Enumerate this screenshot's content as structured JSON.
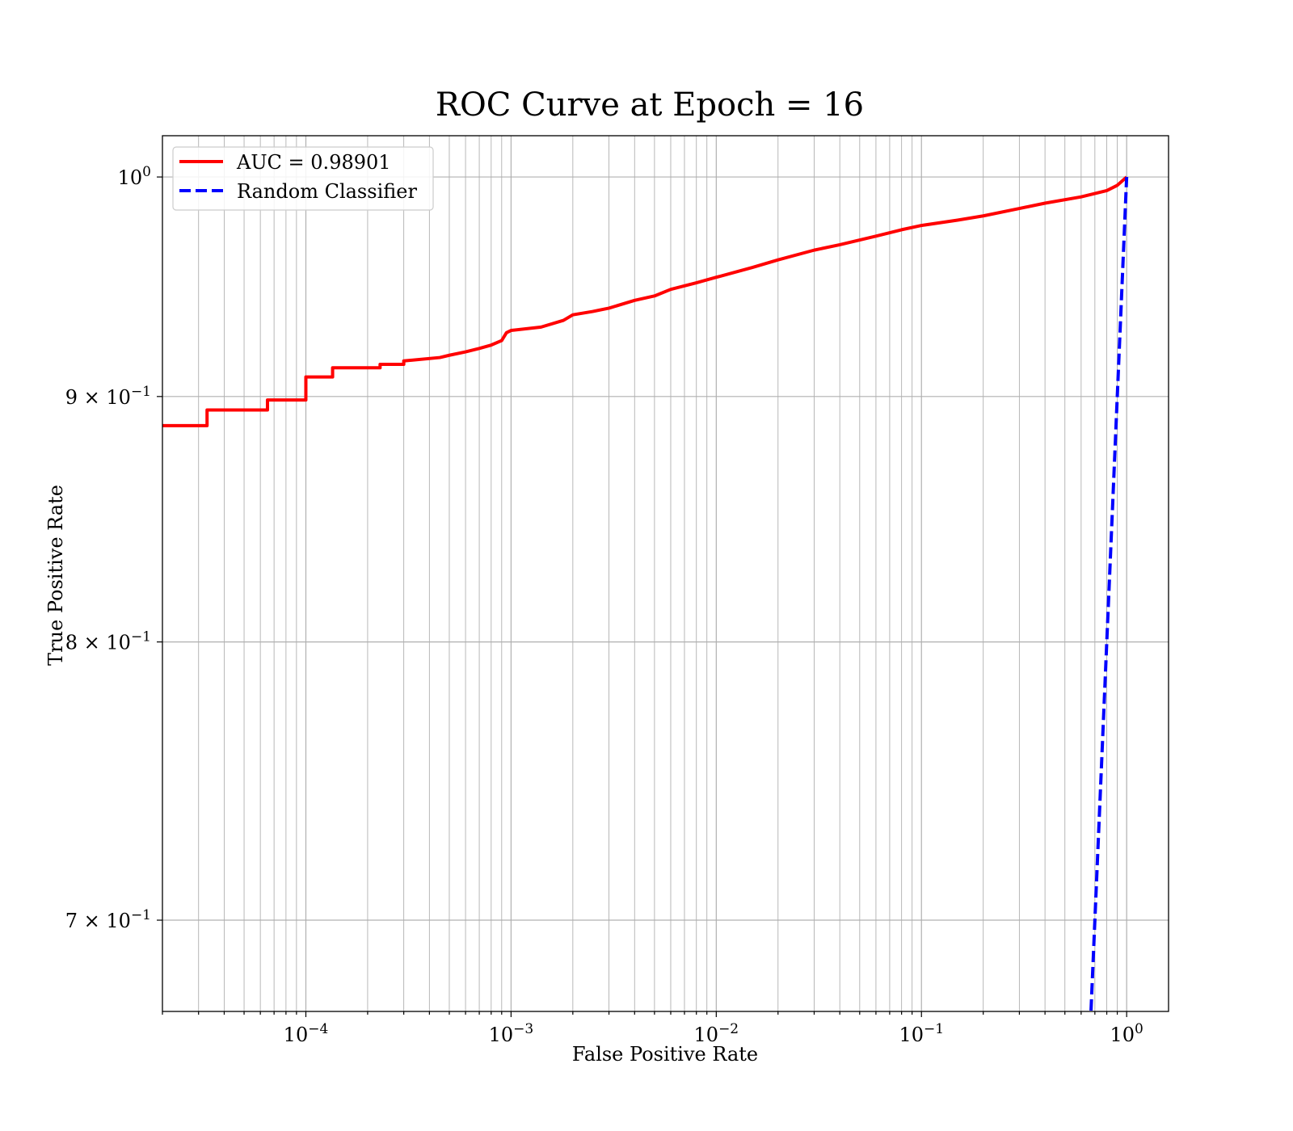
{
  "chart_data": {
    "type": "line",
    "title": "ROC Curve at Epoch = 16",
    "xlabel": "False Positive Rate",
    "ylabel": "True Positive Rate",
    "x_scale": "log",
    "y_scale": "log",
    "xlim": [
      2e-05,
      1.6
    ],
    "ylim": [
      0.67,
      1.02
    ],
    "grid": true,
    "grid_color": "#b0b0b0",
    "legend_position": "top-left",
    "x_ticks": [
      {
        "value": 0.0001,
        "base": "10",
        "exp": "−4"
      },
      {
        "value": 0.001,
        "base": "10",
        "exp": "−3"
      },
      {
        "value": 0.01,
        "base": "10",
        "exp": "−2"
      },
      {
        "value": 0.1,
        "base": "10",
        "exp": "−1"
      },
      {
        "value": 1,
        "base": "10",
        "exp": "0"
      }
    ],
    "y_ticks": [
      {
        "value": 1.0,
        "mant": "",
        "base": "10",
        "exp": "0"
      },
      {
        "value": 0.9,
        "mant": "9 × ",
        "base": "10",
        "exp": "−1"
      },
      {
        "value": 0.8,
        "mant": "8 × ",
        "base": "10",
        "exp": "−1"
      },
      {
        "value": 0.7,
        "mant": "7 × ",
        "base": "10",
        "exp": "−1"
      }
    ],
    "series": [
      {
        "name": "AUC = 0.98901",
        "color": "#ff0000",
        "style": "solid",
        "interpolation": "step",
        "x": [
          2e-05,
          3.3e-05,
          3.3e-05,
          6.5e-05,
          6.5e-05,
          0.0001,
          0.0001,
          0.000135,
          0.000135,
          0.00023,
          0.00023,
          0.0003,
          0.0003,
          0.00045,
          0.0005,
          0.0006,
          0.0007,
          0.0008,
          0.0009,
          0.00095,
          0.001,
          0.0014,
          0.0018,
          0.002,
          0.0025,
          0.003,
          0.004,
          0.005,
          0.006,
          0.008,
          0.01,
          0.015,
          0.02,
          0.03,
          0.04,
          0.06,
          0.08,
          0.1,
          0.15,
          0.2,
          0.3,
          0.4,
          0.6,
          0.8,
          0.9,
          1.0
        ],
        "y": [
          0.8875,
          0.8875,
          0.8942,
          0.8942,
          0.8985,
          0.8985,
          0.9085,
          0.9085,
          0.9125,
          0.9125,
          0.914,
          0.914,
          0.9155,
          0.917,
          0.918,
          0.9195,
          0.921,
          0.9225,
          0.9245,
          0.928,
          0.929,
          0.9305,
          0.9335,
          0.936,
          0.9375,
          0.939,
          0.9425,
          0.9445,
          0.9475,
          0.9505,
          0.953,
          0.9575,
          0.961,
          0.9655,
          0.968,
          0.972,
          0.975,
          0.977,
          0.9795,
          0.9815,
          0.985,
          0.9875,
          0.9905,
          0.9935,
          0.996,
          1.0
        ]
      },
      {
        "name": "Random Classifier",
        "color": "#0000ff",
        "style": "dashed",
        "interpolation": "linear",
        "x": [
          0.63,
          1.0
        ],
        "y": [
          0.63,
          1.0
        ]
      }
    ]
  }
}
